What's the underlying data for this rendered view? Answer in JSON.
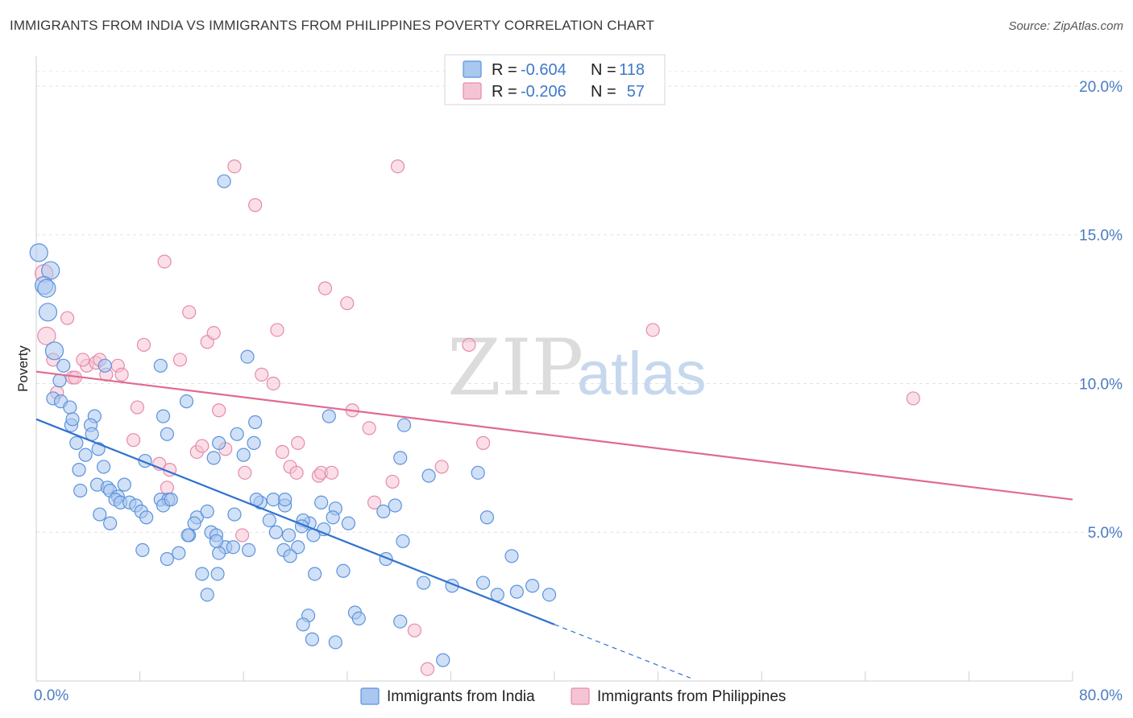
{
  "header": {
    "title": "IMMIGRANTS FROM INDIA VS IMMIGRANTS FROM PHILIPPINES POVERTY CORRELATION CHART",
    "source": "Source: ZipAtlas.com"
  },
  "watermark": {
    "zip": "ZIP",
    "atlas": "atlas"
  },
  "chart_data": {
    "type": "scatter",
    "ylabel": "Poverty",
    "xlim": [
      0,
      80
    ],
    "ylim": [
      0,
      21
    ],
    "x_tick_labels": [
      {
        "value": 0,
        "label": "0.0%"
      },
      {
        "value": 80,
        "label": "80.0%"
      }
    ],
    "y_tick_labels": [
      {
        "value": 5,
        "label": "5.0%"
      },
      {
        "value": 10,
        "label": "10.0%"
      },
      {
        "value": 15,
        "label": "15.0%"
      },
      {
        "value": 20,
        "label": "20.0%"
      }
    ],
    "grid": "horizontal dashed",
    "legend_position": "bottom-center",
    "colors": {
      "india": "#5b93dd",
      "india_fill": "#a9c7ef",
      "philippines": "#e68aab",
      "philippines_fill": "#f5c4d4",
      "india_line": "#2f72cf",
      "philippines_line": "#e06a93"
    },
    "stats": [
      {
        "r_label": "R =",
        "r_value": "-0.604",
        "n_label": "N =",
        "n_value": "118"
      },
      {
        "r_label": "R =",
        "r_value": "-0.206",
        "n_label": "N =",
        "n_value": "57"
      }
    ],
    "series": [
      {
        "name": "Immigrants from India",
        "trend": {
          "x0": 0,
          "y0": 8.8,
          "x1": 40,
          "y1": 1.9,
          "dash_x1": 50.5,
          "dash_y1": 0.1
        },
        "points": [
          [
            0.2,
            14.4
          ],
          [
            1.1,
            13.8
          ],
          [
            0.6,
            13.3
          ],
          [
            0.8,
            13.2
          ],
          [
            0.9,
            12.4
          ],
          [
            1.4,
            11.1
          ],
          [
            2.1,
            10.6
          ],
          [
            1.8,
            10.1
          ],
          [
            1.3,
            9.5
          ],
          [
            1.9,
            9.4
          ],
          [
            2.6,
            9.2
          ],
          [
            2.7,
            8.6
          ],
          [
            2.8,
            8.8
          ],
          [
            4.5,
            8.9
          ],
          [
            4.2,
            8.6
          ],
          [
            4.3,
            8.3
          ],
          [
            3.1,
            8.0
          ],
          [
            4.8,
            7.8
          ],
          [
            3.8,
            7.6
          ],
          [
            5.2,
            7.2
          ],
          [
            3.3,
            7.1
          ],
          [
            4.7,
            6.6
          ],
          [
            5.5,
            6.5
          ],
          [
            5.7,
            6.4
          ],
          [
            6.3,
            6.2
          ],
          [
            6.8,
            6.6
          ],
          [
            6.1,
            6.1
          ],
          [
            6.5,
            6.0
          ],
          [
            7.2,
            6.0
          ],
          [
            7.7,
            5.9
          ],
          [
            8.1,
            5.7
          ],
          [
            9.6,
            6.1
          ],
          [
            10.2,
            6.1
          ],
          [
            9.8,
            5.9
          ],
          [
            3.4,
            6.4
          ],
          [
            4.9,
            5.6
          ],
          [
            5.7,
            5.3
          ],
          [
            8.5,
            5.5
          ],
          [
            10.4,
            6.1
          ],
          [
            12.4,
            5.5
          ],
          [
            12.2,
            5.3
          ],
          [
            11.8,
            4.9
          ],
          [
            11.7,
            4.9
          ],
          [
            13.2,
            5.7
          ],
          [
            13.5,
            5.0
          ],
          [
            13.9,
            4.9
          ],
          [
            14.6,
            4.5
          ],
          [
            15.2,
            4.5
          ],
          [
            14.1,
            4.3
          ],
          [
            11.0,
            4.3
          ],
          [
            10.1,
            4.1
          ],
          [
            8.2,
            4.4
          ],
          [
            17.3,
            6.0
          ],
          [
            18.3,
            6.1
          ],
          [
            19.2,
            5.9
          ],
          [
            19.2,
            6.1
          ],
          [
            17.0,
            6.1
          ],
          [
            15.3,
            5.6
          ],
          [
            18.0,
            5.4
          ],
          [
            21.1,
            5.3
          ],
          [
            20.6,
            5.4
          ],
          [
            20.5,
            5.2
          ],
          [
            18.5,
            5.0
          ],
          [
            19.5,
            4.9
          ],
          [
            19.1,
            4.4
          ],
          [
            16.4,
            4.4
          ],
          [
            13.9,
            4.7
          ],
          [
            14.0,
            3.6
          ],
          [
            12.8,
            3.6
          ],
          [
            22.0,
            6.0
          ],
          [
            23.1,
            5.8
          ],
          [
            22.9,
            5.5
          ],
          [
            26.8,
            5.7
          ],
          [
            27.7,
            5.9
          ],
          [
            24.1,
            5.3
          ],
          [
            22.2,
            5.1
          ],
          [
            21.4,
            4.9
          ],
          [
            20.2,
            4.5
          ],
          [
            19.6,
            4.2
          ],
          [
            21.5,
            3.6
          ],
          [
            23.7,
            3.7
          ],
          [
            28.3,
            4.7
          ],
          [
            27.0,
            4.1
          ],
          [
            29.9,
            3.3
          ],
          [
            32.1,
            3.2
          ],
          [
            34.5,
            3.3
          ],
          [
            38.3,
            3.2
          ],
          [
            37.1,
            3.0
          ],
          [
            39.6,
            2.9
          ],
          [
            35.6,
            2.9
          ],
          [
            36.7,
            4.2
          ],
          [
            34.8,
            5.5
          ],
          [
            34.1,
            7.0
          ],
          [
            30.3,
            6.9
          ],
          [
            28.1,
            7.5
          ],
          [
            28.4,
            8.6
          ],
          [
            22.6,
            8.9
          ],
          [
            16.3,
            10.9
          ],
          [
            16.9,
            8.7
          ],
          [
            16.8,
            8.0
          ],
          [
            16.0,
            7.6
          ],
          [
            15.5,
            8.3
          ],
          [
            14.1,
            8.0
          ],
          [
            13.7,
            7.5
          ],
          [
            11.6,
            9.4
          ],
          [
            10.1,
            8.3
          ],
          [
            9.8,
            8.9
          ],
          [
            9.6,
            10.6
          ],
          [
            8.4,
            7.4
          ],
          [
            14.5,
            16.8
          ],
          [
            13.2,
            2.9
          ],
          [
            21.0,
            2.2
          ],
          [
            21.3,
            1.4
          ],
          [
            20.6,
            1.9
          ],
          [
            23.1,
            1.3
          ],
          [
            24.6,
            2.3
          ],
          [
            24.9,
            2.1
          ],
          [
            28.1,
            2.0
          ],
          [
            31.4,
            0.7
          ],
          [
            5.3,
            10.6
          ]
        ]
      },
      {
        "name": "Immigrants from Philippines",
        "trend": {
          "x0": 0,
          "y0": 10.4,
          "x1": 80,
          "y1": 6.1
        },
        "points": [
          [
            0.6,
            13.7
          ],
          [
            0.8,
            11.6
          ],
          [
            1.3,
            10.8
          ],
          [
            1.6,
            9.7
          ],
          [
            2.4,
            12.2
          ],
          [
            2.8,
            10.2
          ],
          [
            3.0,
            10.2
          ],
          [
            3.9,
            10.6
          ],
          [
            3.6,
            10.8
          ],
          [
            4.6,
            10.7
          ],
          [
            4.9,
            10.8
          ],
          [
            5.4,
            10.3
          ],
          [
            6.3,
            10.6
          ],
          [
            6.6,
            10.3
          ],
          [
            7.8,
            9.2
          ],
          [
            7.5,
            8.1
          ],
          [
            8.3,
            11.3
          ],
          [
            9.5,
            7.3
          ],
          [
            10.1,
            6.5
          ],
          [
            10.3,
            7.1
          ],
          [
            9.9,
            14.1
          ],
          [
            11.1,
            10.8
          ],
          [
            11.8,
            12.4
          ],
          [
            12.4,
            7.7
          ],
          [
            12.8,
            7.9
          ],
          [
            13.2,
            11.4
          ],
          [
            13.7,
            11.7
          ],
          [
            14.1,
            9.1
          ],
          [
            14.6,
            7.8
          ],
          [
            15.3,
            17.3
          ],
          [
            16.1,
            7.0
          ],
          [
            15.9,
            4.9
          ],
          [
            16.9,
            16.0
          ],
          [
            17.4,
            10.3
          ],
          [
            18.3,
            10.0
          ],
          [
            18.6,
            11.8
          ],
          [
            19.0,
            7.7
          ],
          [
            19.6,
            7.2
          ],
          [
            20.1,
            7.0
          ],
          [
            20.2,
            8.0
          ],
          [
            21.8,
            6.9
          ],
          [
            22.0,
            7.0
          ],
          [
            22.3,
            13.2
          ],
          [
            22.8,
            7.0
          ],
          [
            24.0,
            12.7
          ],
          [
            24.4,
            9.1
          ],
          [
            25.7,
            8.5
          ],
          [
            26.1,
            6.0
          ],
          [
            27.9,
            17.3
          ],
          [
            27.5,
            6.7
          ],
          [
            29.2,
            1.7
          ],
          [
            30.2,
            0.4
          ],
          [
            31.3,
            7.2
          ],
          [
            33.4,
            11.3
          ],
          [
            34.5,
            8.0
          ],
          [
            47.6,
            11.8
          ],
          [
            67.7,
            9.5
          ]
        ]
      }
    ]
  },
  "legend": {
    "india_label": "Immigrants from India",
    "philippines_label": "Immigrants from Philippines"
  }
}
